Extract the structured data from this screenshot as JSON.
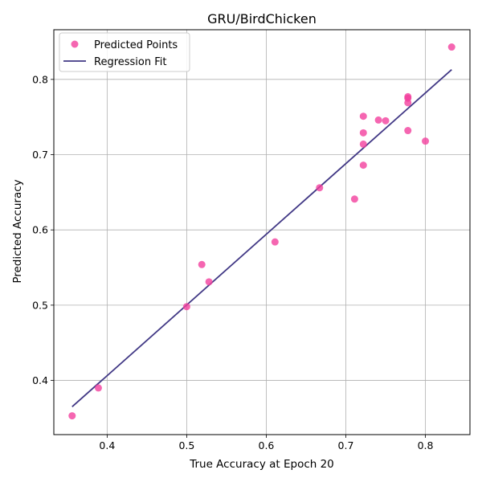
{
  "chart_data": {
    "type": "scatter",
    "title": "GRU/BirdChicken",
    "xlabel": "True Accuracy at Epoch 20",
    "ylabel": "Predicted Accuracy",
    "xlim": [
      0.333,
      0.856
    ],
    "ylim": [
      0.328,
      0.866
    ],
    "xticks": [
      0.4,
      0.5,
      0.6,
      0.7,
      0.8
    ],
    "yticks": [
      0.4,
      0.5,
      0.6,
      0.7,
      0.8
    ],
    "xtick_labels": [
      "0.4",
      "0.5",
      "0.6",
      "0.7",
      "0.8"
    ],
    "ytick_labels": [
      "0.4",
      "0.5",
      "0.6",
      "0.7",
      "0.8"
    ],
    "grid": true,
    "legend_position": "top-left",
    "colors": {
      "points": "#f2409e",
      "fit": "#413885"
    },
    "series": [
      {
        "name": "Predicted Points",
        "kind": "scatter",
        "x": [
          0.356,
          0.389,
          0.5,
          0.519,
          0.528,
          0.611,
          0.667,
          0.711,
          0.722,
          0.722,
          0.722,
          0.722,
          0.741,
          0.75,
          0.778,
          0.778,
          0.778,
          0.778,
          0.8,
          0.833
        ],
        "y": [
          0.353,
          0.39,
          0.498,
          0.554,
          0.531,
          0.584,
          0.656,
          0.641,
          0.686,
          0.714,
          0.729,
          0.751,
          0.746,
          0.745,
          0.732,
          0.769,
          0.775,
          0.777,
          0.718,
          0.843
        ]
      },
      {
        "name": "Regression Fit",
        "kind": "line",
        "x": [
          0.356,
          0.833
        ],
        "y": [
          0.365,
          0.813
        ]
      }
    ]
  }
}
